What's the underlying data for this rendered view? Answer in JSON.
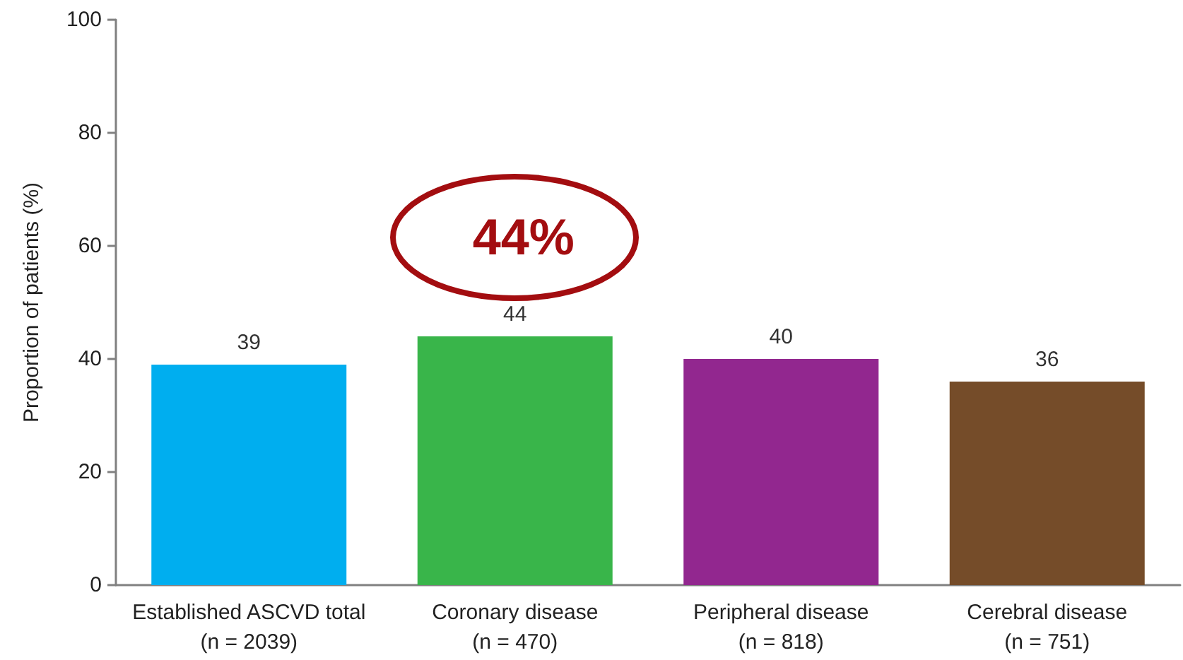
{
  "chart_data": {
    "type": "bar",
    "ylabel": "Proportion of patients (%)",
    "categories": [
      "Established ASCVD total\n(n = 2039)",
      "Coronary disease\n(n = 470)",
      "Peripheral disease\n(n = 818)",
      "Cerebral disease\n(n = 751)"
    ],
    "values": [
      39,
      44,
      40,
      36
    ],
    "colors": [
      "#00aeef",
      "#39b54a",
      "#92278f",
      "#754c29"
    ],
    "ylim": [
      0,
      100
    ],
    "yticks": [
      0,
      20,
      40,
      60,
      80,
      100
    ],
    "data_labels": true,
    "annotations": [
      {
        "text": "44%",
        "x": "Coronary disease\n(n = 470)",
        "y": 44
      }
    ]
  }
}
